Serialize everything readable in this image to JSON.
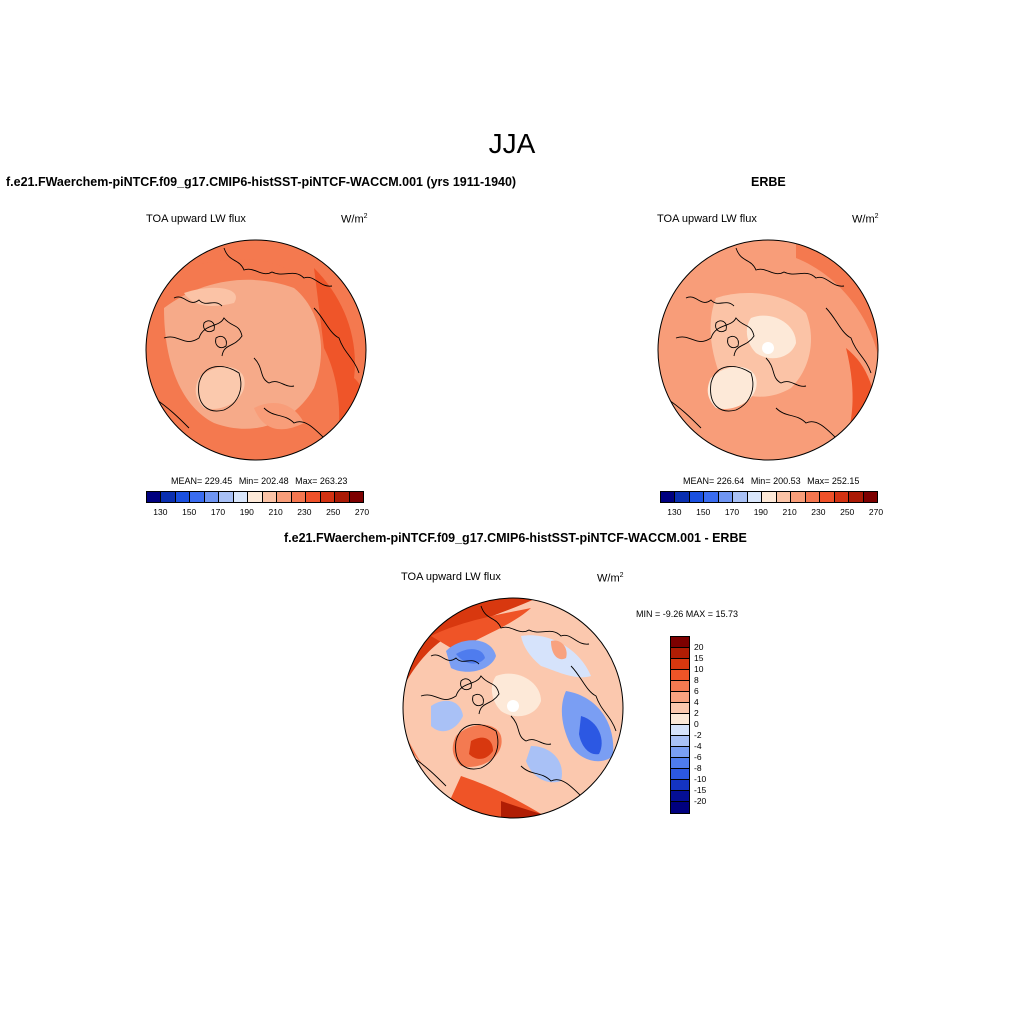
{
  "figure": {
    "season_title": "JJA"
  },
  "panels": {
    "model": {
      "title": "f.e21.FWaerchem-piNTCF.f09_g17.CMIP6-histSST-piNTCF-WACCM.001 (yrs 1911-1940)",
      "variable": "TOA upward LW flux",
      "units": "W/m",
      "units_exponent": "2",
      "stats": {
        "mean": "MEAN= 229.45",
        "min": "Min= 202.48",
        "max": "Max= 263.23"
      },
      "colorbar_ticks": [
        "130",
        "150",
        "170",
        "190",
        "210",
        "230",
        "250",
        "270"
      ]
    },
    "obs": {
      "title": "ERBE",
      "variable": "TOA upward LW flux",
      "units": "W/m",
      "units_exponent": "2",
      "stats": {
        "mean": "MEAN= 226.64",
        "min": "Min= 200.53",
        "max": "Max= 252.15"
      },
      "colorbar_ticks": [
        "130",
        "150",
        "170",
        "190",
        "210",
        "230",
        "250",
        "270"
      ]
    },
    "diff": {
      "title": "f.e21.FWaerchem-piNTCF.f09_g17.CMIP6-histSST-piNTCF-WACCM.001 - ERBE",
      "variable": "TOA upward LW flux",
      "units": "W/m",
      "units_exponent": "2",
      "minmax": "MIN =  -9.26 MAX =  15.73",
      "colorbar_ticks": [
        "20",
        "15",
        "10",
        "8",
        "6",
        "4",
        "2",
        "0",
        "-2",
        "-4",
        "-6",
        "-8",
        "-10",
        "-15",
        "-20"
      ]
    }
  },
  "colors": {
    "abs_scale": [
      "#00007f",
      "#0a2fb0",
      "#1a50e0",
      "#3a6cf0",
      "#6f95f2",
      "#a8c0f5",
      "#d9e6fb",
      "#fde9d8",
      "#fbc3a6",
      "#f89d79",
      "#f4764f",
      "#ef5129",
      "#d33212",
      "#aa1a05",
      "#7d0000"
    ],
    "diff_scale": [
      "#7d0000",
      "#b01d04",
      "#d8380f",
      "#ef5427",
      "#f47a51",
      "#f8a27f",
      "#fbc8ae",
      "#fde9d8",
      "#d6e3fb",
      "#a9c1f6",
      "#7a9ef3",
      "#4f7cee",
      "#2c58e3",
      "#1434c2",
      "#050f95",
      "#00007f"
    ],
    "land": "#f6aa89",
    "ocean_warm": "#f4794f",
    "ocean_hot": "#ef5529",
    "coast": "#000000"
  }
}
